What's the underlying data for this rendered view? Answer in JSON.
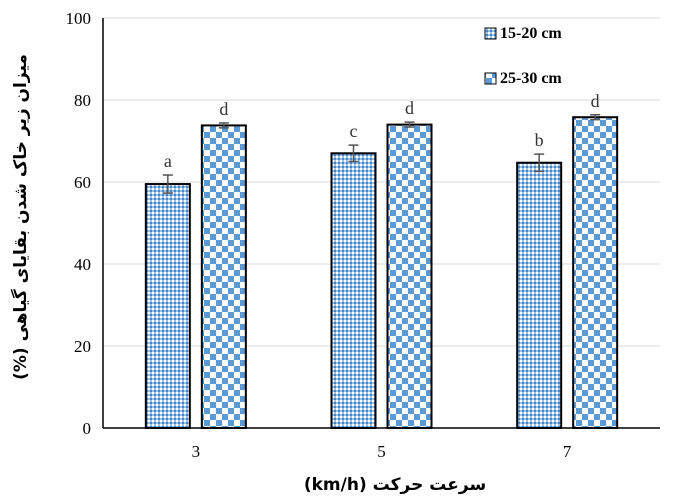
{
  "chart_data": {
    "type": "bar",
    "title": "",
    "xlabel": "سرعت حرکت (km/h)",
    "ylabel": "میزان زیر خاک شدن بقایای گیاهی (%)",
    "categories": [
      "3",
      "5",
      "7"
    ],
    "ylim": [
      0,
      100
    ],
    "yticks": [
      0,
      20,
      40,
      60,
      80,
      100
    ],
    "grid": "horizontal",
    "legend_position": "top-right",
    "series": [
      {
        "name": "15-20 cm",
        "values": [
          59.5,
          67.0,
          64.7
        ],
        "errors": [
          2.2,
          2.0,
          2.1
        ],
        "letters": [
          "a",
          "c",
          "b"
        ],
        "color": "#5B9BD5",
        "pattern": "dots"
      },
      {
        "name": "25-30 cm",
        "values": [
          73.8,
          74.0,
          75.8
        ],
        "errors": [
          0.6,
          0.6,
          0.6
        ],
        "letters": [
          "d",
          "d",
          "d"
        ],
        "color": "#5B9BD5",
        "pattern": "checker"
      }
    ]
  }
}
